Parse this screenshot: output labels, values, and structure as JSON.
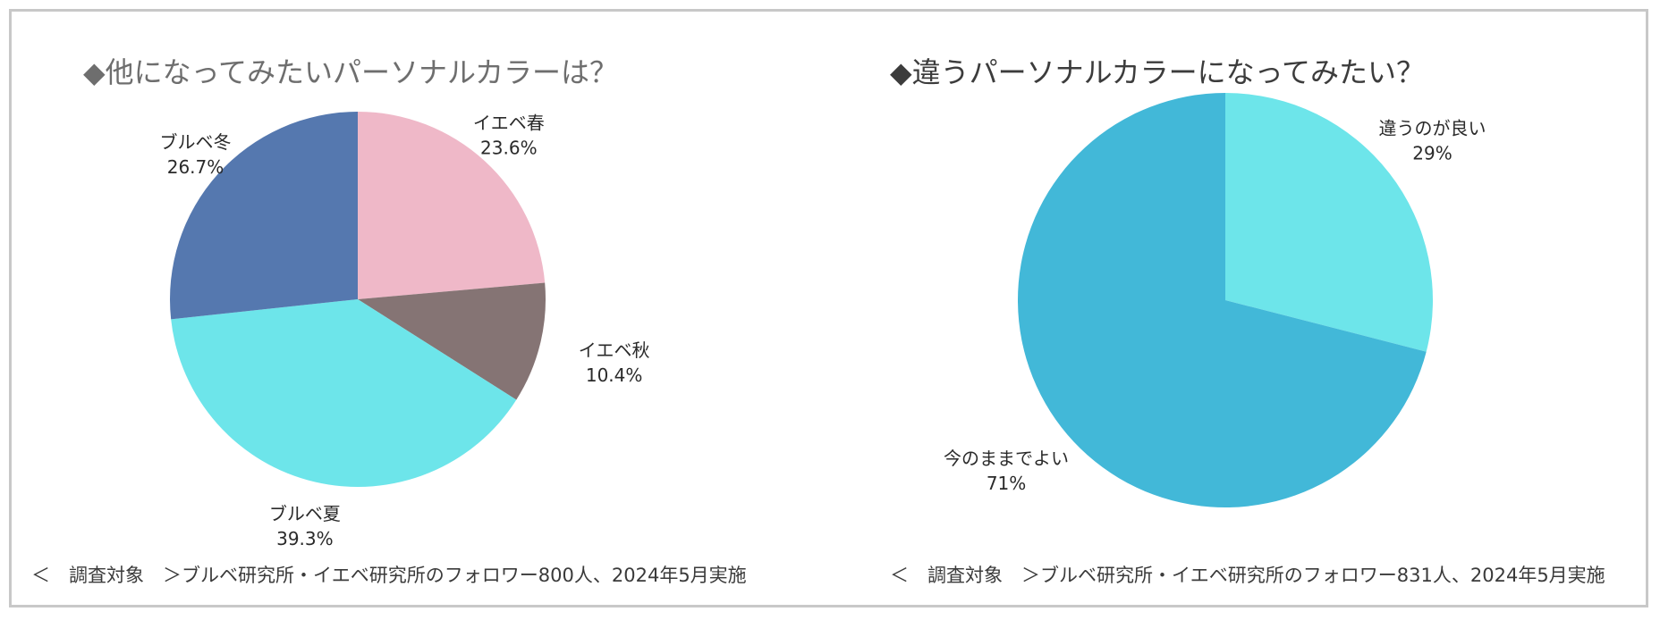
{
  "chart_data": [
    {
      "type": "pie",
      "title": "◆他になってみたいパーソナルカラーは？",
      "labels": [
        "イエベ春",
        "イエベ秋",
        "ブルベ夏",
        "ブルベ冬"
      ],
      "values": [
        23.6,
        10.4,
        39.3,
        26.7
      ],
      "value_labels": [
        "23.6%",
        "10.4%",
        "39.3%",
        "26.7%"
      ],
      "colors": [
        "#efb8c8",
        "#857474",
        "#6de5ea",
        "#5578af"
      ],
      "start": "12 o'clock, clockwise",
      "footnote": "＜　調査対象　＞ブルベ研究所・イエベ研究所のフォロワー800人、2024年5月実施"
    },
    {
      "type": "pie",
      "title": "◆違うパーソナルカラーになってみたい？",
      "labels": [
        "違うのが良い",
        "今のままでよい"
      ],
      "values": [
        29,
        71
      ],
      "value_labels": [
        "29%",
        "71%"
      ],
      "colors": [
        "#6de5ea",
        "#42b8d8"
      ],
      "start": "12 o'clock, clockwise",
      "footnote": "＜　調査対象　＞ブルベ研究所・イエベ研究所のフォロワー831人、2024年5月実施"
    }
  ]
}
